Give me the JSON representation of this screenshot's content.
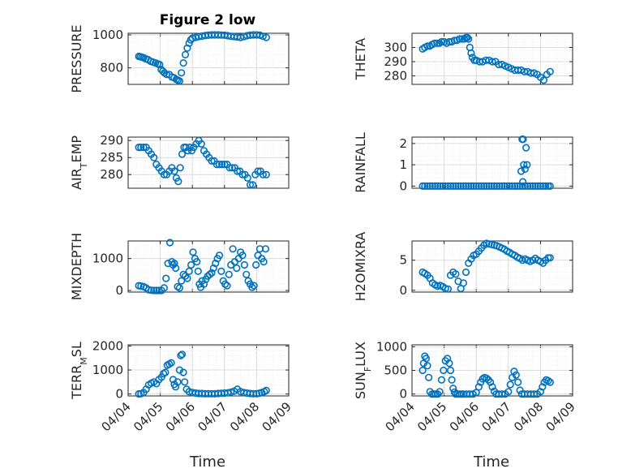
{
  "figure": {
    "title": "Figure 2 low",
    "xlabel": "Time"
  },
  "chart_data": [
    {
      "type": "scatter",
      "title": "Figure 2 low",
      "ylabel": "PRESSURE",
      "ylim": [
        700,
        1010
      ],
      "yticks": [
        800,
        1000
      ],
      "xlim": [
        4.0,
        9.0
      ],
      "x": [
        4.33,
        4.38,
        4.43,
        4.48,
        4.55,
        4.62,
        4.7,
        4.78,
        4.85,
        4.92,
        4.98,
        5.03,
        5.08,
        5.13,
        5.2,
        5.28,
        5.36,
        5.43,
        5.5,
        5.55,
        5.6,
        5.66,
        5.72,
        5.78,
        5.84,
        5.9,
        5.95,
        6.0,
        6.1,
        6.2,
        6.3,
        6.4,
        6.5,
        6.6,
        6.7,
        6.8,
        6.9,
        7.0,
        7.1,
        7.2,
        7.3,
        7.4,
        7.5,
        7.6,
        7.7,
        7.8,
        7.9,
        8.0,
        8.1,
        8.2,
        8.3
      ],
      "y": [
        870,
        868,
        865,
        862,
        855,
        850,
        840,
        835,
        830,
        825,
        820,
        790,
        780,
        770,
        760,
        760,
        745,
        740,
        730,
        725,
        720,
        770,
        830,
        880,
        920,
        950,
        970,
        980,
        985,
        990,
        993,
        996,
        998,
        1000,
        1000,
        1000,
        999,
        998,
        995,
        992,
        990,
        988,
        985,
        990,
        995,
        998,
        1000,
        1000,
        998,
        992,
        985
      ],
      "color": "#0072bd"
    },
    {
      "type": "scatter",
      "ylabel": "THETA",
      "ylim": [
        274,
        310
      ],
      "yticks": [
        280,
        290,
        300
      ],
      "xlim": [
        4.0,
        9.0
      ],
      "x": [
        4.33,
        4.4,
        4.48,
        4.55,
        4.62,
        4.7,
        4.78,
        4.85,
        4.92,
        5.0,
        5.08,
        5.16,
        5.24,
        5.32,
        5.4,
        5.48,
        5.56,
        5.63,
        5.68,
        5.72,
        5.76,
        5.8,
        5.84,
        5.88,
        5.94,
        6.0,
        6.1,
        6.2,
        6.3,
        6.4,
        6.5,
        6.6,
        6.7,
        6.8,
        6.9,
        7.0,
        7.1,
        7.2,
        7.3,
        7.4,
        7.5,
        7.6,
        7.7,
        7.8,
        7.9,
        8.0,
        8.1,
        8.2,
        8.3
      ],
      "y": [
        299,
        300,
        301,
        301,
        302,
        303,
        303,
        303,
        304,
        304,
        303,
        304,
        304,
        305,
        305,
        306,
        306,
        306,
        307,
        307,
        306,
        300,
        296,
        293,
        291,
        291,
        290,
        290,
        291,
        291,
        290,
        290,
        288,
        288,
        287,
        286,
        285,
        284,
        284,
        284,
        283,
        283,
        282,
        282,
        281,
        279,
        277,
        281,
        283
      ],
      "color": "#0072bd"
    },
    {
      "type": "scatter",
      "ylabel": "AIR_TEMP",
      "ylim": [
        276,
        291
      ],
      "yticks": [
        280,
        285,
        290
      ],
      "xlim": [
        4.0,
        9.0
      ],
      "x": [
        4.33,
        4.4,
        4.48,
        4.56,
        4.64,
        4.72,
        4.8,
        4.88,
        4.96,
        5.04,
        5.12,
        5.2,
        5.28,
        5.36,
        5.44,
        5.5,
        5.56,
        5.62,
        5.68,
        5.74,
        5.8,
        5.86,
        5.92,
        5.98,
        6.04,
        6.12,
        6.2,
        6.28,
        6.36,
        6.44,
        6.52,
        6.6,
        6.68,
        6.76,
        6.84,
        6.92,
        7.0,
        7.08,
        7.16,
        7.24,
        7.32,
        7.4,
        7.48,
        7.56,
        7.64,
        7.72,
        7.8,
        7.88,
        7.96,
        8.04,
        8.12,
        8.2,
        8.3
      ],
      "y": [
        288,
        288,
        288,
        288,
        287,
        286,
        285,
        283,
        282,
        281,
        280,
        280,
        281,
        282,
        281,
        279,
        278,
        282,
        286,
        288,
        288,
        287,
        288,
        287,
        288,
        289,
        290,
        289,
        287,
        286,
        285,
        284,
        284,
        283,
        283,
        283,
        283,
        283,
        282,
        282,
        282,
        281,
        281,
        280,
        280,
        279,
        277,
        277,
        280,
        281,
        281,
        280,
        280
      ],
      "color": "#0072bd"
    },
    {
      "type": "scatter",
      "ylabel": "RAINFALL",
      "ylim": [
        -0.1,
        2.3
      ],
      "yticks": [
        0,
        1,
        2
      ],
      "xlim": [
        4.0,
        9.0
      ],
      "x": [
        4.33,
        4.4,
        4.48,
        4.56,
        4.64,
        4.72,
        4.8,
        4.88,
        4.96,
        5.04,
        5.12,
        5.2,
        5.28,
        5.36,
        5.44,
        5.52,
        5.6,
        5.68,
        5.76,
        5.84,
        5.92,
        6.0,
        6.08,
        6.16,
        6.24,
        6.32,
        6.4,
        6.48,
        6.56,
        6.64,
        6.72,
        6.8,
        6.88,
        6.96,
        7.04,
        7.12,
        7.2,
        7.28,
        7.36,
        7.44,
        7.52,
        7.6,
        7.68,
        7.76,
        7.84,
        7.92,
        8.0,
        8.08,
        8.16,
        8.24,
        8.3,
        7.4,
        7.43,
        7.46,
        7.48,
        7.52,
        7.55,
        7.58,
        7.45
      ],
      "y": [
        0,
        0,
        0,
        0,
        0,
        0,
        0,
        0,
        0,
        0,
        0,
        0,
        0,
        0,
        0,
        0,
        0,
        0,
        0,
        0,
        0,
        0,
        0,
        0,
        0,
        0,
        0,
        0,
        0,
        0,
        0,
        0,
        0,
        0,
        0,
        0,
        0,
        0,
        0,
        0,
        0,
        0,
        0,
        0,
        0,
        0,
        0,
        0,
        0,
        0,
        0,
        0.7,
        2.2,
        2.2,
        1.0,
        0.8,
        1.8,
        1.0,
        0.2
      ],
      "color": "#0072bd"
    },
    {
      "type": "scatter",
      "ylabel": "MIXDEPTH",
      "ylim": [
        -50,
        1550
      ],
      "yticks": [
        0,
        1000
      ],
      "xlim": [
        4.0,
        9.0
      ],
      "x": [
        4.33,
        4.4,
        4.48,
        4.56,
        4.64,
        4.72,
        4.8,
        4.88,
        4.96,
        5.04,
        5.12,
        5.18,
        5.24,
        5.3,
        5.36,
        5.4,
        5.44,
        5.48,
        5.54,
        5.6,
        5.66,
        5.72,
        5.78,
        5.84,
        5.9,
        5.96,
        6.02,
        6.08,
        6.14,
        6.18,
        6.22,
        6.26,
        6.3,
        6.36,
        6.42,
        6.48,
        6.54,
        6.6,
        6.66,
        6.72,
        6.78,
        6.84,
        6.9,
        6.96,
        7.02,
        7.08,
        7.14,
        7.2,
        7.26,
        7.32,
        7.38,
        7.44,
        7.5,
        7.56,
        7.62,
        7.68,
        7.74,
        7.8,
        7.86,
        7.92,
        7.98,
        8.04,
        8.1,
        8.16,
        8.22,
        8.28
      ],
      "y": [
        150,
        140,
        120,
        80,
        20,
        5,
        0,
        0,
        0,
        0,
        80,
        380,
        850,
        1500,
        900,
        800,
        850,
        700,
        120,
        80,
        300,
        500,
        450,
        380,
        600,
        800,
        1200,
        1000,
        900,
        600,
        200,
        100,
        300,
        200,
        350,
        450,
        500,
        550,
        700,
        850,
        1000,
        1100,
        600,
        300,
        200,
        150,
        500,
        800,
        1300,
        900,
        700,
        1000,
        1200,
        1100,
        800,
        500,
        300,
        200,
        100,
        150,
        800,
        1100,
        1300,
        1000,
        900,
        1300
      ],
      "color": "#0072bd"
    },
    {
      "type": "scatter",
      "ylabel": "H2OMIXRA",
      "ylim": [
        -0.3,
        8.2
      ],
      "yticks": [
        0,
        5
      ],
      "xlim": [
        4.0,
        9.0
      ],
      "x": [
        4.33,
        4.4,
        4.48,
        4.56,
        4.64,
        4.72,
        4.8,
        4.88,
        4.96,
        5.04,
        5.12,
        5.2,
        5.28,
        5.36,
        5.44,
        5.52,
        5.6,
        5.68,
        5.76,
        5.84,
        5.92,
        6.0,
        6.08,
        6.16,
        6.24,
        6.32,
        6.4,
        6.48,
        6.56,
        6.64,
        6.72,
        6.8,
        6.88,
        6.96,
        7.04,
        7.12,
        7.2,
        7.28,
        7.36,
        7.44,
        7.52,
        7.6,
        7.68,
        7.76,
        7.84,
        7.92,
        8.0,
        8.08,
        8.16,
        8.24,
        8.3
      ],
      "y": [
        3.0,
        2.8,
        2.5,
        2.0,
        1.2,
        0.9,
        0.7,
        0.8,
        0.6,
        0.3,
        0.2,
        2.5,
        3.0,
        2.7,
        1.5,
        0.3,
        1.2,
        3.0,
        4.5,
        5.2,
        5.8,
        6.0,
        6.5,
        7.0,
        7.5,
        7.8,
        7.7,
        7.6,
        7.5,
        7.4,
        7.2,
        7.0,
        6.8,
        6.5,
        6.3,
        6.0,
        5.8,
        5.5,
        5.3,
        5.0,
        5.2,
        5.0,
        4.8,
        5.0,
        5.3,
        5.0,
        4.8,
        4.5,
        5.0,
        5.4,
        5.4
      ],
      "color": "#0072bd"
    },
    {
      "type": "scatter",
      "ylabel": "TERR_MSL",
      "ylim": [
        -80,
        2050
      ],
      "yticks": [
        0,
        1000,
        2000
      ],
      "xlim": [
        4.0,
        9.0
      ],
      "x": [
        4.33,
        4.4,
        4.48,
        4.56,
        4.64,
        4.72,
        4.8,
        4.88,
        4.96,
        5.04,
        5.1,
        5.16,
        5.22,
        5.28,
        5.34,
        5.4,
        5.44,
        5.48,
        5.54,
        5.6,
        5.64,
        5.68,
        5.72,
        5.76,
        5.82,
        5.9,
        6.0,
        6.1,
        6.2,
        6.3,
        6.4,
        6.5,
        6.6,
        6.7,
        6.8,
        6.9,
        7.0,
        7.1,
        7.2,
        7.3,
        7.4,
        7.5,
        7.6,
        7.7,
        7.8,
        7.9,
        8.0,
        8.08,
        8.16,
        8.24,
        8.3
      ],
      "y": [
        5,
        10,
        60,
        200,
        380,
        450,
        500,
        430,
        600,
        700,
        850,
        900,
        1200,
        1250,
        1300,
        600,
        400,
        300,
        500,
        1000,
        1600,
        1650,
        900,
        500,
        200,
        100,
        60,
        40,
        20,
        20,
        10,
        10,
        10,
        10,
        20,
        30,
        40,
        50,
        80,
        120,
        200,
        100,
        60,
        40,
        20,
        10,
        10,
        30,
        60,
        100,
        150
      ],
      "color": "#0072bd"
    },
    {
      "type": "scatter",
      "ylabel": "SUN_FLUX",
      "ylim": [
        -40,
        1040
      ],
      "yticks": [
        0,
        500,
        1000
      ],
      "xlim": [
        4.0,
        9.0
      ],
      "x": [
        4.33,
        4.36,
        4.4,
        4.44,
        4.48,
        4.52,
        4.56,
        4.62,
        4.68,
        4.74,
        4.8,
        4.86,
        4.92,
        4.98,
        5.04,
        5.1,
        5.16,
        5.2,
        5.24,
        5.28,
        5.32,
        5.36,
        5.42,
        5.48,
        5.54,
        5.6,
        5.7,
        5.8,
        5.9,
        6.0,
        6.08,
        6.14,
        6.2,
        6.26,
        6.32,
        6.38,
        6.44,
        6.5,
        6.56,
        6.62,
        6.7,
        6.8,
        6.9,
        7.0,
        7.06,
        7.12,
        7.18,
        7.24,
        7.3,
        7.36,
        7.42,
        7.5,
        7.6,
        7.7,
        7.8,
        7.9,
        8.0,
        8.06,
        8.12,
        8.18,
        8.24,
        8.3
      ],
      "y": [
        500,
        650,
        800,
        750,
        600,
        350,
        50,
        0,
        0,
        0,
        0,
        50,
        300,
        500,
        700,
        750,
        650,
        500,
        300,
        120,
        40,
        0,
        0,
        0,
        0,
        0,
        0,
        0,
        0,
        30,
        150,
        250,
        320,
        350,
        330,
        300,
        250,
        150,
        60,
        0,
        0,
        0,
        0,
        50,
        200,
        350,
        480,
        400,
        250,
        80,
        0,
        0,
        0,
        0,
        0,
        0,
        50,
        150,
        250,
        300,
        280,
        250
      ],
      "color": "#0072bd"
    }
  ],
  "axes": {
    "xtick_values": [
      4.0,
      5.0,
      6.0,
      7.0,
      8.0,
      9.0
    ],
    "xtick_labels": [
      "04/04",
      "04/05",
      "04/06",
      "04/07",
      "04/08",
      "04/09"
    ]
  },
  "ylabel_parts": [
    [
      "PRESSURE",
      "",
      ""
    ],
    [
      "THETA",
      "",
      ""
    ],
    [
      "AIR",
      "T",
      "EMP"
    ],
    [
      "RAINFALL",
      "",
      ""
    ],
    [
      "MIXDEPTH",
      "",
      ""
    ],
    [
      "H2OMIXRA",
      "",
      ""
    ],
    [
      "TERR",
      "M",
      "SL"
    ],
    [
      "SUN",
      "F",
      "LUX"
    ]
  ]
}
